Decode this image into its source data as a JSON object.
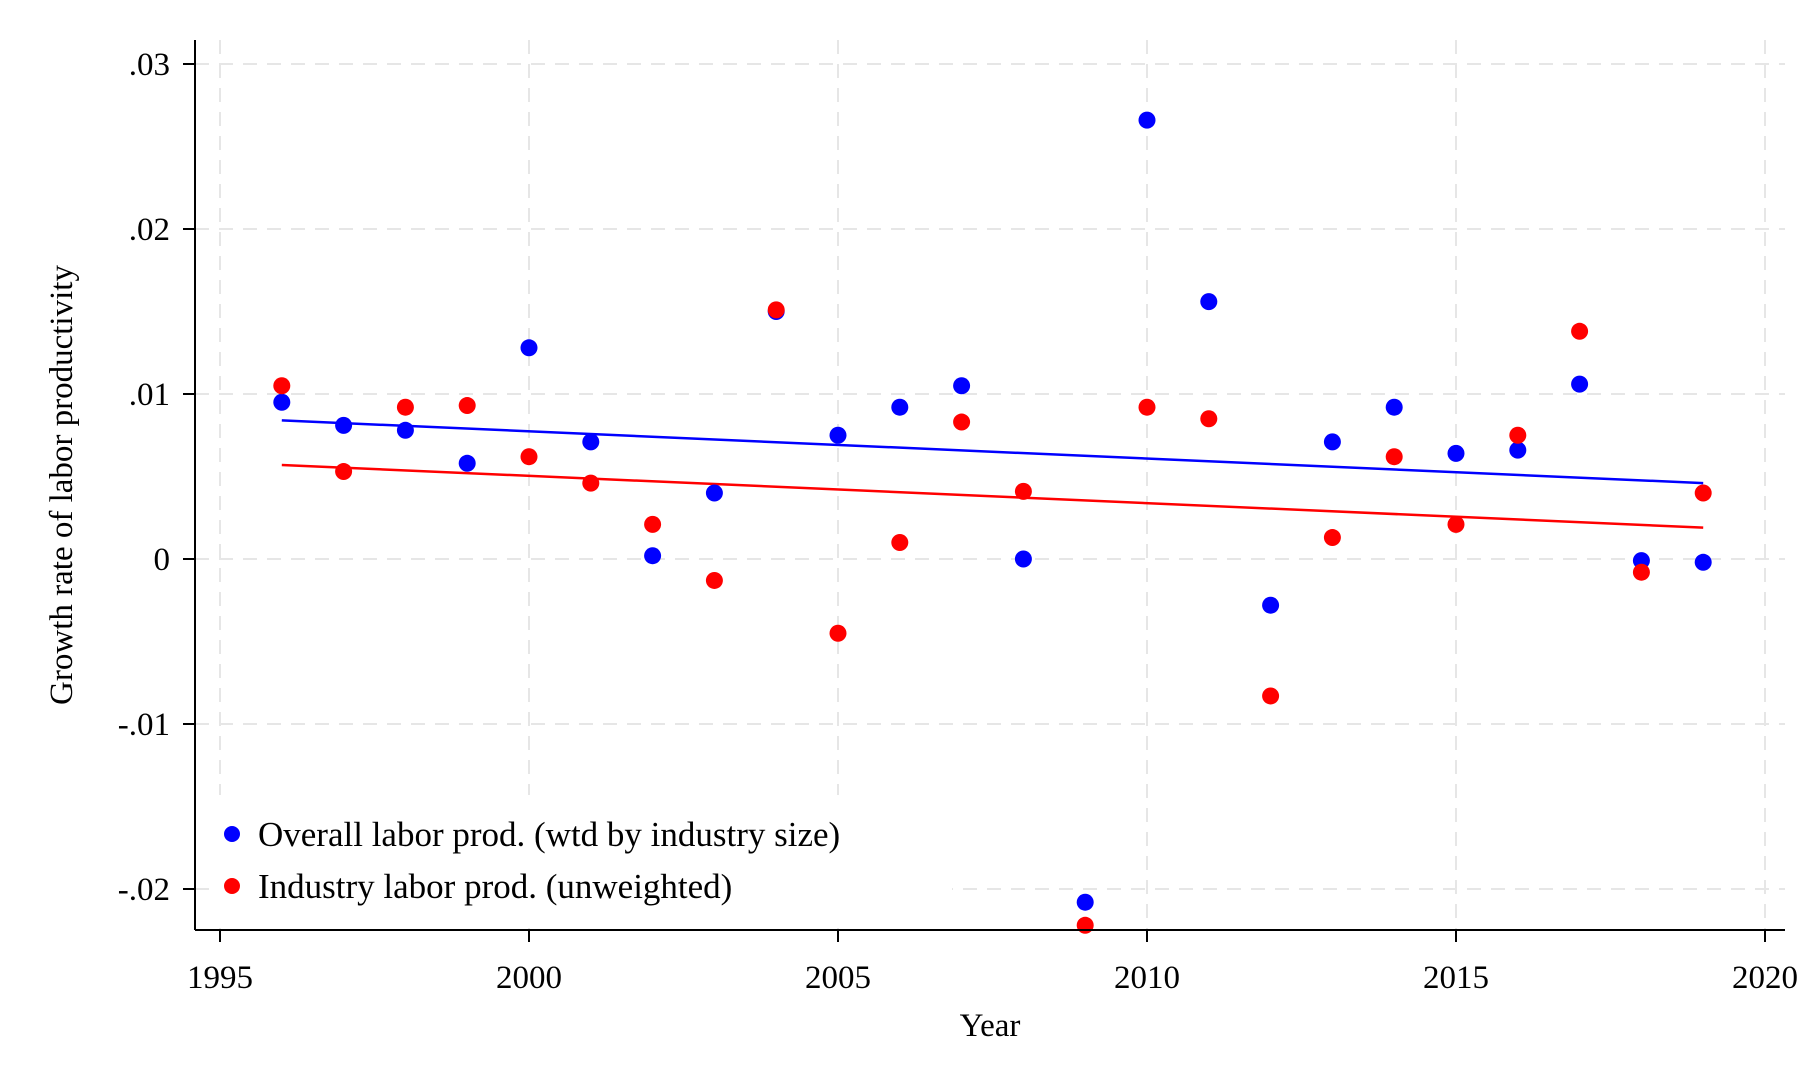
{
  "chart_data": {
    "type": "scatter",
    "title": "",
    "xlabel": "Year",
    "ylabel": "Growth rate of labor productivity",
    "xlim": [
      1995,
      2020
    ],
    "ylim": [
      -0.023,
      0.031
    ],
    "x_ticks": [
      1995,
      2000,
      2005,
      2010,
      2015,
      2020
    ],
    "x_tick_labels": [
      "1995",
      "2000",
      "2005",
      "2010",
      "2015",
      "2020"
    ],
    "y_ticks": [
      -0.02,
      -0.01,
      0,
      0.01,
      0.02,
      0.03
    ],
    "y_tick_labels": [
      "-.02",
      "-.01",
      "0",
      ".01",
      ".02",
      ".03"
    ],
    "grid": true,
    "legend_position": "bottom-left",
    "series": [
      {
        "name": "Overall labor prod. (wtd by industry size)",
        "color": "#0000ff",
        "x": [
          1996,
          1997,
          1998,
          1999,
          2000,
          2001,
          2002,
          2003,
          2004,
          2005,
          2006,
          2007,
          2008,
          2009,
          2010,
          2011,
          2012,
          2013,
          2014,
          2015,
          2016,
          2017,
          2018,
          2019
        ],
        "y": [
          0.0095,
          0.0081,
          0.0078,
          0.0058,
          0.0128,
          0.0071,
          0.0002,
          0.004,
          0.015,
          0.0075,
          0.0092,
          0.0105,
          0.0,
          -0.0208,
          0.0266,
          0.0156,
          -0.0028,
          0.0071,
          0.0092,
          0.0064,
          0.0066,
          0.0106,
          -0.0001,
          -0.0002
        ],
        "fit": {
          "x": [
            1996,
            2019
          ],
          "y": [
            0.0084,
            0.0046
          ]
        }
      },
      {
        "name": "Industry labor prod. (unweighted)",
        "color": "#ff0000",
        "x": [
          1996,
          1997,
          1998,
          1999,
          2000,
          2001,
          2002,
          2003,
          2004,
          2005,
          2006,
          2007,
          2008,
          2009,
          2010,
          2011,
          2012,
          2013,
          2014,
          2015,
          2016,
          2017,
          2018,
          2019
        ],
        "y": [
          0.0105,
          0.0053,
          0.0092,
          0.0093,
          0.0062,
          0.0046,
          0.0021,
          -0.0013,
          0.0151,
          -0.0045,
          0.001,
          0.0083,
          0.0041,
          -0.0222,
          0.0092,
          0.0085,
          -0.0083,
          0.0013,
          0.0062,
          0.0021,
          0.0075,
          0.0138,
          -0.0008,
          0.004
        ],
        "fit": {
          "x": [
            1996,
            2019
          ],
          "y": [
            0.0057,
            0.0019
          ]
        }
      }
    ]
  }
}
